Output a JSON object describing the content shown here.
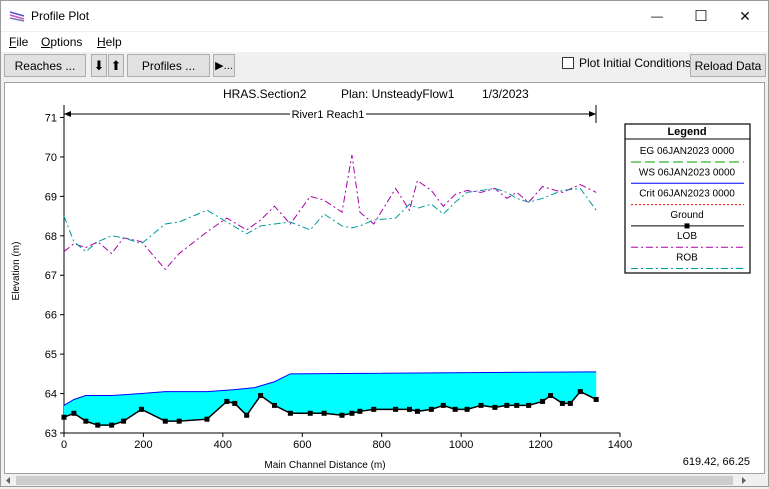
{
  "window": {
    "title": "Profile Plot",
    "controls": {
      "minimize": "—",
      "maximize": "☐",
      "close": "✕"
    }
  },
  "menu": [
    {
      "label": "File",
      "accel": "F",
      "rest": "ile"
    },
    {
      "label": "Options",
      "accel": "O",
      "rest": "ptions"
    },
    {
      "label": "Help",
      "accel": "H",
      "rest": "elp"
    }
  ],
  "toolbar": {
    "reaches_label": "Reaches ...",
    "down_arrow": "⬇",
    "up_arrow": "⬆",
    "profiles_label": "Profiles ...",
    "animate_label": "▶...",
    "plot_initial_label": "Plot Initial Conditions",
    "reload_label": "Reload Data"
  },
  "plot": {
    "header_title": "HRAS.Section2",
    "plan": "Plan: UnsteadyFlow1",
    "date": "1/3/2023",
    "reach_label": "River1 Reach1",
    "coord_readout": "619.42, 66.25"
  },
  "legend": {
    "title": "Legend",
    "entries": [
      {
        "label": "EG  06JAN2023 0000",
        "color": "#00a000",
        "style": "longdash"
      },
      {
        "label": "WS  06JAN2023 0000",
        "color": "#0000ff",
        "style": "solid"
      },
      {
        "label": "Crit  06JAN2023 0000",
        "color": "#ff0000",
        "style": "dotted"
      },
      {
        "label": "Ground",
        "color": "#000000",
        "style": "solid-marker"
      },
      {
        "label": "LOB",
        "color": "#aa00aa",
        "style": "dashdot"
      },
      {
        "label": "ROB",
        "color": "#009999",
        "style": "dashdot"
      }
    ]
  },
  "colors": {
    "water_fill": "#00ffff",
    "ground": "#000000",
    "lob": "#aa00aa",
    "rob": "#009999"
  },
  "chart_data": {
    "type": "line",
    "xlabel": "Main Channel Distance (m)",
    "ylabel": "Elevation (m)",
    "xlim": [
      0,
      1400
    ],
    "ylim": [
      63,
      71.5
    ],
    "xticks": [
      0,
      200,
      400,
      600,
      800,
      1000,
      1200,
      1400
    ],
    "yticks": [
      63,
      64,
      65,
      66,
      67,
      68,
      69,
      70,
      71
    ],
    "series": [
      {
        "name": "Ground",
        "x": [
          0,
          25,
          55,
          85,
          120,
          150,
          195,
          255,
          290,
          360,
          410,
          430,
          460,
          495,
          530,
          570,
          620,
          655,
          700,
          725,
          745,
          780,
          835,
          870,
          890,
          925,
          955,
          985,
          1015,
          1050,
          1085,
          1115,
          1140,
          1170,
          1205,
          1225,
          1255,
          1275,
          1300,
          1340
        ],
        "y": [
          63.4,
          63.5,
          63.3,
          63.2,
          63.2,
          63.3,
          63.6,
          63.3,
          63.3,
          63.35,
          63.8,
          63.75,
          63.45,
          63.95,
          63.7,
          63.5,
          63.5,
          63.5,
          63.45,
          63.5,
          63.55,
          63.6,
          63.6,
          63.6,
          63.55,
          63.6,
          63.7,
          63.6,
          63.6,
          63.7,
          63.65,
          63.7,
          63.7,
          63.7,
          63.8,
          63.95,
          63.75,
          63.75,
          64.05,
          63.85
        ]
      },
      {
        "name": "WS  06JAN2023 0000",
        "x": [
          0,
          25,
          55,
          120,
          195,
          255,
          360,
          430,
          480,
          530,
          570,
          1340
        ],
        "y": [
          63.7,
          63.85,
          63.95,
          63.95,
          64.0,
          64.05,
          64.05,
          64.1,
          64.15,
          64.3,
          64.5,
          64.55
        ]
      },
      {
        "name": "LOB",
        "x": [
          0,
          25,
          55,
          85,
          120,
          150,
          195,
          255,
          290,
          360,
          410,
          460,
          495,
          530,
          570,
          620,
          655,
          700,
          725,
          745,
          780,
          835,
          870,
          890,
          925,
          955,
          985,
          1015,
          1050,
          1085,
          1115,
          1140,
          1170,
          1205,
          1255,
          1300,
          1340
        ],
        "y": [
          67.6,
          67.8,
          67.7,
          67.85,
          67.55,
          67.95,
          67.85,
          67.15,
          67.55,
          68.1,
          68.45,
          68.15,
          68.4,
          68.75,
          68.3,
          69.0,
          68.9,
          68.6,
          70.05,
          68.6,
          68.3,
          69.2,
          68.65,
          69.4,
          69.15,
          68.75,
          69.05,
          69.15,
          69.1,
          69.2,
          68.95,
          69.1,
          68.85,
          69.25,
          69.1,
          69.3,
          69.1
        ]
      },
      {
        "name": "ROB",
        "x": [
          0,
          25,
          55,
          85,
          120,
          150,
          195,
          255,
          290,
          360,
          410,
          460,
          495,
          530,
          570,
          620,
          655,
          700,
          725,
          745,
          780,
          835,
          870,
          890,
          925,
          955,
          985,
          1015,
          1050,
          1085,
          1115,
          1140,
          1170,
          1205,
          1255,
          1300,
          1340
        ],
        "y": [
          68.5,
          67.85,
          67.6,
          67.85,
          68.0,
          67.95,
          67.8,
          68.3,
          68.35,
          68.65,
          68.35,
          68.05,
          68.25,
          68.3,
          68.35,
          68.15,
          68.55,
          68.25,
          68.2,
          68.25,
          68.4,
          68.45,
          68.8,
          68.7,
          68.8,
          68.55,
          68.85,
          69.1,
          69.15,
          69.2,
          69.1,
          68.95,
          68.85,
          68.95,
          69.15,
          69.2,
          68.65
        ]
      }
    ]
  }
}
